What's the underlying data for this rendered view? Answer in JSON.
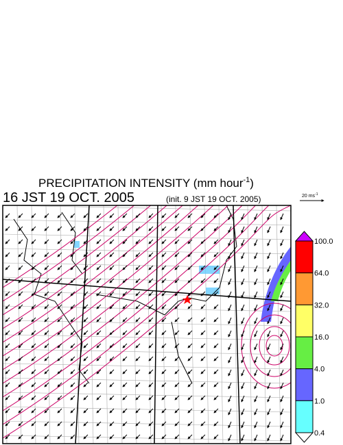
{
  "header": {
    "title": "PRECIPITATION INTENSITY (mm hour",
    "title_exponent": "-1",
    "title_close": ")",
    "valid_time": "16 JST 19 OCT. 2005",
    "init_time": "(init. 9 JST 19 OCT. 2005)"
  },
  "reference_vector": {
    "label": "20 ms",
    "exponent": "-1"
  },
  "colorbar": {
    "levels": [
      "100.0",
      "64.0",
      "32.0",
      "16.0",
      "4.0",
      "1.0",
      "0.4"
    ],
    "colors": [
      "#ff0000",
      "#ff9933",
      "#ffff66",
      "#66ee44",
      "#6666ff",
      "#66ffff"
    ],
    "over_color": "#cc00ff",
    "under_color": "#ffffff"
  }
}
